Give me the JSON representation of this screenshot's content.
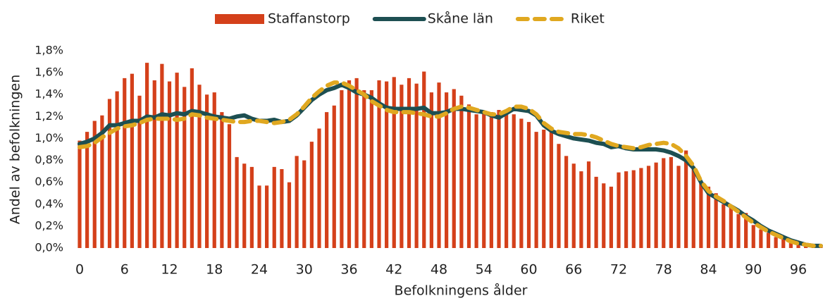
{
  "chart_data": {
    "type": "bar_line",
    "x_label": "Befolkningens ålder",
    "y_label": "Andel av befolkningen",
    "categories": [
      "0",
      null,
      null,
      null,
      null,
      null,
      "6",
      null,
      null,
      null,
      null,
      null,
      "12",
      null,
      null,
      null,
      null,
      null,
      "18",
      null,
      null,
      null,
      null,
      null,
      "24",
      null,
      null,
      null,
      null,
      null,
      "30",
      null,
      null,
      null,
      null,
      null,
      "36",
      null,
      null,
      null,
      null,
      null,
      "42",
      null,
      null,
      null,
      null,
      null,
      "48",
      null,
      null,
      null,
      null,
      null,
      "54",
      null,
      null,
      null,
      null,
      null,
      "60",
      null,
      null,
      null,
      null,
      null,
      "66",
      null,
      null,
      null,
      null,
      null,
      "72",
      null,
      null,
      null,
      null,
      null,
      "78",
      null,
      null,
      null,
      null,
      null,
      "84",
      null,
      null,
      null,
      null,
      null,
      "90",
      null,
      null,
      null,
      null,
      null,
      "96",
      null,
      null,
      null
    ],
    "series": [
      {
        "name": "Staffanstorp",
        "kind": "bar",
        "color": "#d4401a",
        "values": [
          0.98,
          1.06,
          1.16,
          1.21,
          1.36,
          1.43,
          1.55,
          1.59,
          1.39,
          1.69,
          1.53,
          1.68,
          1.52,
          1.6,
          1.47,
          1.64,
          1.49,
          1.4,
          1.42,
          1.24,
          1.13,
          0.83,
          0.77,
          0.74,
          0.57,
          0.57,
          0.74,
          0.72,
          0.6,
          0.84,
          0.8,
          0.97,
          1.09,
          1.24,
          1.3,
          1.44,
          1.53,
          1.55,
          1.44,
          1.44,
          1.53,
          1.52,
          1.56,
          1.49,
          1.55,
          1.5,
          1.61,
          1.42,
          1.51,
          1.42,
          1.45,
          1.39,
          1.31,
          1.22,
          1.24,
          1.24,
          1.26,
          1.23,
          1.22,
          1.18,
          1.15,
          1.06,
          1.08,
          1.06,
          0.95,
          0.84,
          0.77,
          0.7,
          0.79,
          0.65,
          0.59,
          0.56,
          0.69,
          0.7,
          0.71,
          0.73,
          0.75,
          0.78,
          0.82,
          0.83,
          0.75,
          0.89,
          0.74,
          0.6,
          0.56,
          0.5,
          0.4,
          0.37,
          0.31,
          0.32,
          0.21,
          0.17,
          0.14,
          0.1,
          0.08,
          0.06,
          0.05,
          0.03,
          0.02,
          0.02
        ]
      },
      {
        "name": "Skåne län",
        "kind": "line",
        "color": "#1d4f52",
        "values": [
          0.95,
          0.97,
          1.0,
          1.05,
          1.12,
          1.12,
          1.14,
          1.16,
          1.16,
          1.2,
          1.19,
          1.22,
          1.21,
          1.23,
          1.22,
          1.25,
          1.24,
          1.22,
          1.2,
          1.19,
          1.18,
          1.2,
          1.21,
          1.18,
          1.16,
          1.16,
          1.17,
          1.15,
          1.16,
          1.21,
          1.28,
          1.35,
          1.4,
          1.44,
          1.46,
          1.49,
          1.46,
          1.42,
          1.4,
          1.37,
          1.32,
          1.28,
          1.27,
          1.27,
          1.27,
          1.27,
          1.28,
          1.23,
          1.23,
          1.24,
          1.27,
          1.27,
          1.26,
          1.25,
          1.24,
          1.21,
          1.19,
          1.23,
          1.27,
          1.26,
          1.25,
          1.21,
          1.12,
          1.07,
          1.04,
          1.02,
          1.0,
          0.99,
          0.98,
          0.96,
          0.95,
          0.92,
          0.93,
          0.91,
          0.9,
          0.9,
          0.9,
          0.9,
          0.89,
          0.87,
          0.84,
          0.8,
          0.73,
          0.6,
          0.5,
          0.46,
          0.42,
          0.38,
          0.34,
          0.29,
          0.25,
          0.2,
          0.16,
          0.13,
          0.1,
          0.07,
          0.05,
          0.03,
          0.02,
          0.02
        ]
      },
      {
        "name": "Riket",
        "kind": "line",
        "dashed": true,
        "color": "#e0a820",
        "values": [
          0.92,
          0.93,
          0.96,
          1.01,
          1.05,
          1.09,
          1.11,
          1.12,
          1.14,
          1.17,
          1.18,
          1.18,
          1.18,
          1.17,
          1.18,
          1.22,
          1.21,
          1.19,
          1.18,
          1.17,
          1.16,
          1.15,
          1.15,
          1.16,
          1.16,
          1.15,
          1.14,
          1.15,
          1.17,
          1.22,
          1.29,
          1.37,
          1.43,
          1.48,
          1.51,
          1.51,
          1.48,
          1.44,
          1.4,
          1.34,
          1.3,
          1.26,
          1.24,
          1.24,
          1.24,
          1.23,
          1.22,
          1.2,
          1.2,
          1.23,
          1.27,
          1.29,
          1.28,
          1.26,
          1.24,
          1.22,
          1.22,
          1.25,
          1.29,
          1.29,
          1.27,
          1.22,
          1.14,
          1.09,
          1.06,
          1.05,
          1.04,
          1.04,
          1.03,
          1.01,
          0.98,
          0.95,
          0.93,
          0.92,
          0.91,
          0.92,
          0.94,
          0.95,
          0.96,
          0.95,
          0.91,
          0.84,
          0.75,
          0.61,
          0.52,
          0.47,
          0.43,
          0.38,
          0.33,
          0.28,
          0.23,
          0.19,
          0.15,
          0.12,
          0.09,
          0.06,
          0.04,
          0.03,
          0.02,
          0.02
        ]
      }
    ],
    "ylim": [
      0,
      1.8
    ],
    "yticks": [
      {
        "value": 0,
        "label": "0,0%"
      },
      {
        "value": 0.2,
        "label": "0,2%"
      },
      {
        "value": 0.4,
        "label": "0,4%"
      },
      {
        "value": 0.6,
        "label": "0,6%"
      },
      {
        "value": 0.8,
        "label": "0,8%"
      },
      {
        "value": 1.0,
        "label": "1,0%"
      },
      {
        "value": 1.2,
        "label": "1,2%"
      },
      {
        "value": 1.4,
        "label": "1,4%"
      },
      {
        "value": 1.6,
        "label": "1,6%"
      },
      {
        "value": 1.8,
        "label": "1,8%"
      }
    ],
    "legend": "top",
    "grid": false
  }
}
